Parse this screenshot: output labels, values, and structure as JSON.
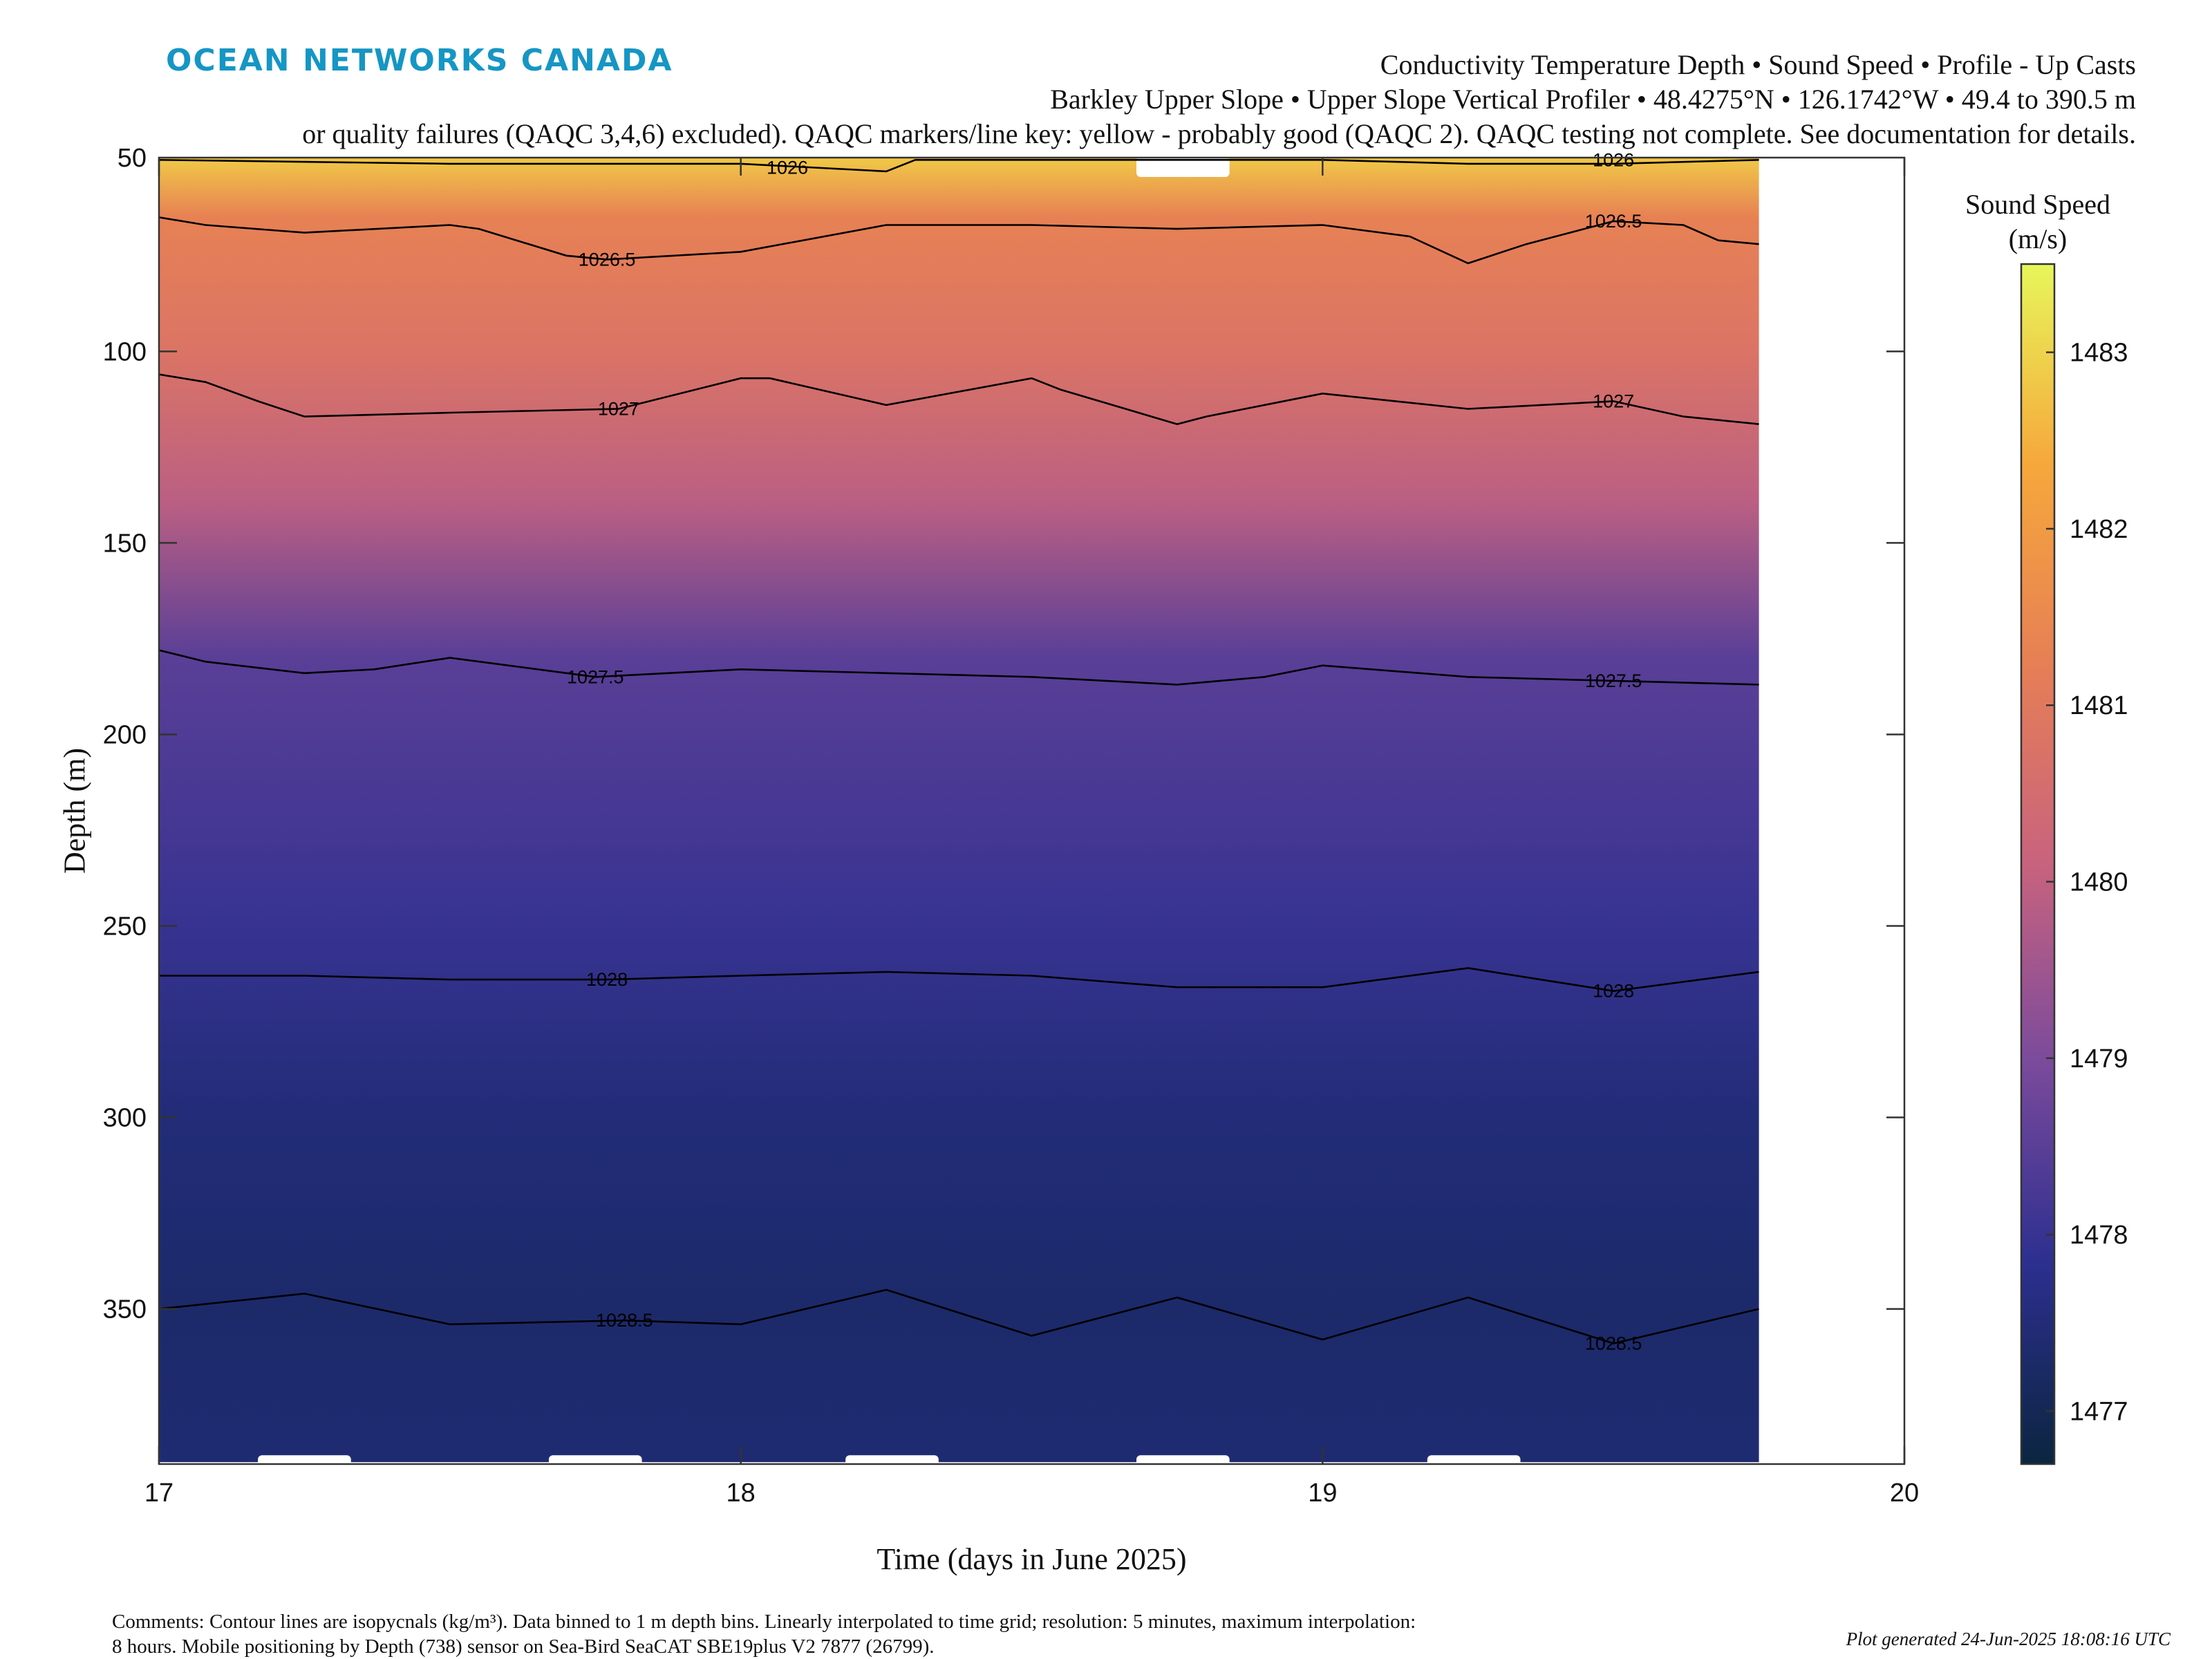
{
  "header": {
    "logo": "OCEAN NETWORKS CANADA",
    "title_line1": "Conductivity Temperature Depth • Sound Speed • Profile - Up Casts",
    "title_line2": "Barkley Upper Slope • Upper Slope Vertical Profiler • 48.4275°N • 126.1742°W • 49.4 to 390.5 m",
    "title_line3": "or quality failures (QAQC 3,4,6) excluded). QAQC markers/line key: yellow - probably good (QAQC 2). QAQC testing not complete. See documentation for details."
  },
  "footer": {
    "comments_line1": "Comments: Contour lines are isopycnals (kg/m³). Data binned to 1 m depth bins. Linearly interpolated to time grid; resolution: 5 minutes, maximum interpolation:",
    "comments_line2": "8 hours. Mobile positioning by Depth (738) sensor on Sea-Bird SeaCAT SBE19plus V2 7877 (26799).",
    "generated": "Plot generated 24-Jun-2025 18:08:16 UTC"
  },
  "colors": {
    "deep": "#0b2540",
    "low": "#2c2f8f",
    "mid": "#7a4a9c",
    "upper": "#c8637e",
    "warm": "#e67f55",
    "hot": "#f6a83c",
    "top": "#e7f65a"
  },
  "chart_data": {
    "type": "heatmap",
    "xlabel": "Time (days in June 2025)",
    "ylabel": "Depth (m)",
    "xlim": [
      17,
      20
    ],
    "ylim": [
      390.5,
      49.4
    ],
    "y_reversed": true,
    "xticks": [
      17,
      18,
      19,
      20
    ],
    "yticks": [
      100,
      150,
      200,
      250,
      300,
      350
    ],
    "data_extent_x": [
      17.0,
      19.75
    ],
    "colorbar": {
      "label_line1": "Sound Speed",
      "label_line2": "(m/s)",
      "range": [
        1476.7,
        1483.5
      ],
      "ticks": [
        1477,
        1478,
        1479,
        1480,
        1481,
        1482,
        1483
      ]
    },
    "sound_speed_profile": [
      {
        "depth": 50,
        "value": 1482.8
      },
      {
        "depth": 65,
        "value": 1481.3
      },
      {
        "depth": 100,
        "value": 1480.8
      },
      {
        "depth": 140,
        "value": 1479.9
      },
      {
        "depth": 180,
        "value": 1478.5
      },
      {
        "depth": 250,
        "value": 1478.0
      },
      {
        "depth": 300,
        "value": 1477.5
      },
      {
        "depth": 350,
        "value": 1477.3
      },
      {
        "depth": 390,
        "value": 1477.4
      }
    ],
    "contours": [
      {
        "level": "1026",
        "label_positions": [
          [
            18.08,
            52
          ],
          [
            19.5,
            50
          ]
        ],
        "points": [
          [
            17.0,
            50
          ],
          [
            17.5,
            51
          ],
          [
            18.0,
            51
          ],
          [
            18.25,
            53
          ],
          [
            18.3,
            50
          ],
          [
            19.0,
            50
          ],
          [
            19.25,
            51
          ],
          [
            19.5,
            51
          ],
          [
            19.75,
            50
          ]
        ]
      },
      {
        "level": "1026.5",
        "label_positions": [
          [
            17.77,
            76
          ],
          [
            19.5,
            66
          ]
        ],
        "points": [
          [
            17.0,
            65
          ],
          [
            17.08,
            67
          ],
          [
            17.25,
            69
          ],
          [
            17.5,
            67
          ],
          [
            17.55,
            68
          ],
          [
            17.7,
            75
          ],
          [
            17.77,
            76
          ],
          [
            18.0,
            74
          ],
          [
            18.25,
            67
          ],
          [
            18.5,
            67
          ],
          [
            18.75,
            68
          ],
          [
            19.0,
            67
          ],
          [
            19.15,
            70
          ],
          [
            19.25,
            77
          ],
          [
            19.35,
            72
          ],
          [
            19.5,
            66
          ],
          [
            19.62,
            67
          ],
          [
            19.68,
            71
          ],
          [
            19.75,
            72
          ]
        ]
      },
      {
        "level": "1027",
        "label_positions": [
          [
            17.79,
            115
          ],
          [
            19.5,
            113
          ]
        ],
        "points": [
          [
            17.0,
            106
          ],
          [
            17.08,
            108
          ],
          [
            17.17,
            113
          ],
          [
            17.25,
            117
          ],
          [
            17.5,
            116
          ],
          [
            17.79,
            115
          ],
          [
            18.0,
            107
          ],
          [
            18.05,
            107
          ],
          [
            18.25,
            114
          ],
          [
            18.5,
            107
          ],
          [
            18.55,
            110
          ],
          [
            18.75,
            119
          ],
          [
            18.8,
            117
          ],
          [
            19.0,
            111
          ],
          [
            19.25,
            115
          ],
          [
            19.5,
            113
          ],
          [
            19.62,
            117
          ],
          [
            19.75,
            119
          ]
        ]
      },
      {
        "level": "1027.5",
        "label_positions": [
          [
            17.75,
            185
          ],
          [
            19.5,
            186
          ]
        ],
        "points": [
          [
            17.0,
            178
          ],
          [
            17.08,
            181
          ],
          [
            17.25,
            184
          ],
          [
            17.37,
            183
          ],
          [
            17.5,
            180
          ],
          [
            17.75,
            185
          ],
          [
            18.0,
            183
          ],
          [
            18.25,
            184
          ],
          [
            18.5,
            185
          ],
          [
            18.75,
            187
          ],
          [
            18.9,
            185
          ],
          [
            19.0,
            182
          ],
          [
            19.25,
            185
          ],
          [
            19.5,
            186
          ],
          [
            19.75,
            187
          ]
        ]
      },
      {
        "level": "1028",
        "label_positions": [
          [
            17.77,
            264
          ],
          [
            19.5,
            267
          ]
        ],
        "points": [
          [
            17.0,
            263
          ],
          [
            17.25,
            263
          ],
          [
            17.5,
            264
          ],
          [
            17.77,
            264
          ],
          [
            18.0,
            263
          ],
          [
            18.25,
            262
          ],
          [
            18.5,
            263
          ],
          [
            18.75,
            266
          ],
          [
            19.0,
            266
          ],
          [
            19.25,
            261
          ],
          [
            19.5,
            267
          ],
          [
            19.75,
            262
          ]
        ]
      },
      {
        "level": "1028.5",
        "label_positions": [
          [
            17.8,
            353
          ],
          [
            19.5,
            359
          ]
        ],
        "points": [
          [
            17.0,
            350
          ],
          [
            17.25,
            346
          ],
          [
            17.5,
            354
          ],
          [
            17.8,
            353
          ],
          [
            18.0,
            354
          ],
          [
            18.25,
            345
          ],
          [
            18.5,
            357
          ],
          [
            18.75,
            347
          ],
          [
            19.0,
            358
          ],
          [
            19.25,
            347
          ],
          [
            19.5,
            359
          ],
          [
            19.75,
            350
          ]
        ]
      }
    ],
    "qaqc_gaps_bottom": [
      [
        17.17,
        17.33
      ],
      [
        17.67,
        17.83
      ],
      [
        18.18,
        18.34
      ],
      [
        18.68,
        18.84
      ],
      [
        19.18,
        19.34
      ]
    ],
    "qaqc_gaps_top": [
      [
        18.68,
        18.84
      ]
    ]
  }
}
